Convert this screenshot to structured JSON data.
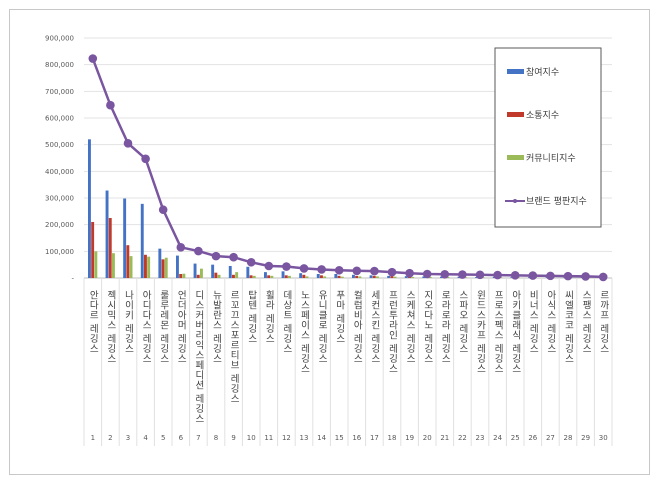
{
  "chart_data": {
    "type": "bar",
    "title": "",
    "xlabel": "",
    "ylabel": "",
    "ylim": [
      0,
      900000
    ],
    "yticks": [
      "-",
      "100,000",
      "200,000",
      "300,000",
      "400,000",
      "500,000",
      "600,000",
      "700,000",
      "800,000",
      "900,000"
    ],
    "grid": true,
    "legend_position": "right",
    "ranks": [
      1,
      2,
      3,
      4,
      5,
      6,
      7,
      8,
      9,
      10,
      11,
      12,
      13,
      14,
      15,
      16,
      17,
      18,
      19,
      20,
      21,
      22,
      23,
      24,
      25,
      26,
      27,
      28,
      29,
      30
    ],
    "categories": [
      "안다르 레깅스",
      "젝시믹스 레깅스",
      "나이키 레깅스",
      "아디다스 레깅스",
      "룰루레몬 레깅스",
      "언더아머 레깅스",
      "디스커버리익스페디션 레깅스",
      "뉴발란스 레깅스",
      "르꼬끄스포르티브 레깅스",
      "탑텐 레깅스",
      "휠라 레깅스",
      "데상트 레깅스",
      "노스페이스 레깅스",
      "유니클로 레깅스",
      "푸마 레깅스",
      "컬럼비아 레깅스",
      "세컨스킨 레깅스",
      "프런투라인 레깅스",
      "스케쳐스 레깅스",
      "지오다노 레깅스",
      "로라로라 레깅스",
      "스파오 레깅스",
      "윈드스카프 레깅스",
      "프로스펙스 레깅스",
      "아키클래식 레깅스",
      "비너스 레깅스",
      "아식스 레깅스",
      "씨엘코코 레깅스",
      "스팽스 레깅스",
      "르까프 레깅스"
    ],
    "series": [
      {
        "name": "참여지수",
        "kind": "bar",
        "color": "#4472c4",
        "values": [
          520000,
          328000,
          298000,
          278000,
          110000,
          84000,
          54000,
          50000,
          45000,
          42000,
          22000,
          25000,
          18000,
          15000,
          15000,
          12000,
          10000,
          8000,
          7000,
          6000,
          5000,
          5000,
          4000,
          4000,
          3000,
          3000,
          3000,
          2000,
          2000,
          1000
        ]
      },
      {
        "name": "소통지수",
        "kind": "bar",
        "color": "#c0392b",
        "values": [
          210000,
          225000,
          123000,
          87000,
          70000,
          15000,
          12000,
          20000,
          12000,
          10000,
          10000,
          10000,
          12000,
          10000,
          8000,
          8000,
          8000,
          7000,
          5000,
          4000,
          4000,
          4000,
          4000,
          3000,
          3000,
          3000,
          2000,
          2000,
          2000,
          1000
        ]
      },
      {
        "name": "커뮤니티지수",
        "kind": "bar",
        "color": "#9bbb59",
        "values": [
          100000,
          93000,
          82000,
          80000,
          76000,
          16000,
          35000,
          12000,
          22000,
          8000,
          8000,
          8000,
          6000,
          6000,
          5000,
          6000,
          6000,
          5000,
          4000,
          4000,
          4000,
          3000,
          3000,
          3000,
          3000,
          2000,
          2000,
          2000,
          1000,
          1000
        ]
      },
      {
        "name": "브랜드 평판지수",
        "kind": "line",
        "color": "#7a55a0",
        "values": [
          823000,
          648000,
          505000,
          447000,
          256000,
          115000,
          101000,
          82000,
          78000,
          59000,
          45000,
          43000,
          36000,
          32000,
          29000,
          27000,
          26000,
          22000,
          18000,
          15000,
          14000,
          13000,
          12000,
          11000,
          10000,
          9000,
          8000,
          7000,
          6000,
          4000
        ]
      }
    ]
  }
}
